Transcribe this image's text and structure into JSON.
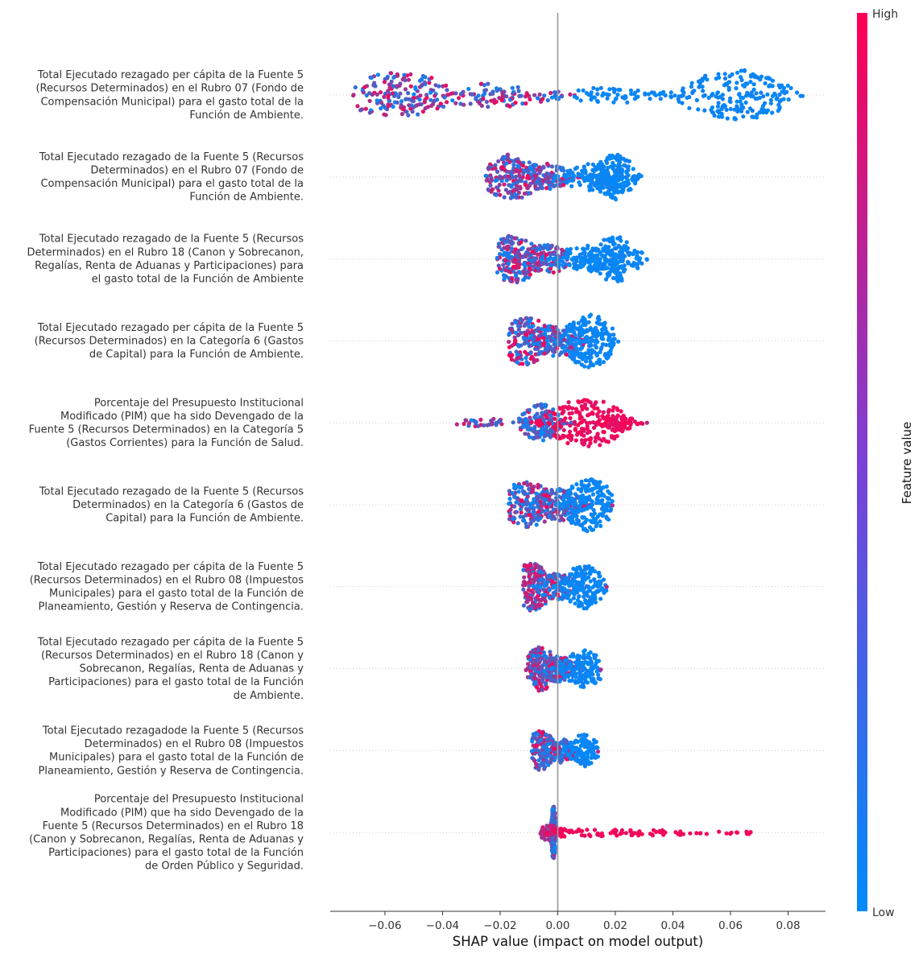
{
  "chart_data": {
    "type": "scatter",
    "subtype": "shap-beeswarm",
    "xlabel": "SHAP value (impact on model output)",
    "xlim": [
      -0.079,
      0.093
    ],
    "xticks": [
      -0.06,
      -0.04,
      -0.02,
      0.0,
      0.02,
      0.04,
      0.06,
      0.08
    ],
    "xtick_labels": [
      "−0.06",
      "−0.04",
      "−0.02",
      "0.00",
      "0.02",
      "0.04",
      "0.06",
      "0.08"
    ],
    "zero_line": true,
    "grid": false,
    "colorbar": {
      "title": "Feature value",
      "high_label": "High",
      "low_label": "Low",
      "low_color": "#008bfb",
      "high_color": "#ff0052"
    },
    "features": [
      {
        "lines": [
          "Total Ejecutado rezagado per cápita de la Fuente 5",
          "(Recursos Determinados) en el Rubro 07 (Fondo de",
          "Compensación Municipal) para el gasto total de la",
          "Función de Ambiente."
        ],
        "clusters": [
          {
            "center": -0.055,
            "spread": 0.011,
            "density": 0.85,
            "color_mix": 0.45
          },
          {
            "center": -0.022,
            "spread": 0.012,
            "density": 0.45,
            "color_mix": 0.4
          },
          {
            "center": 0.018,
            "spread": 0.012,
            "density": 0.3,
            "color_mix": 0.0
          },
          {
            "center": 0.062,
            "spread": 0.011,
            "density": 0.95,
            "color_mix": 0.0
          }
        ],
        "outliers": [
          -0.071,
          0.085
        ],
        "range": [
          -0.071,
          0.085
        ]
      },
      {
        "lines": [
          "Total Ejecutado rezagado de la Fuente 5 (Recursos",
          "Determinados) en el Rubro 07 (Fondo de",
          "Compensación Municipal) para el gasto total de la",
          "Función de Ambiente."
        ],
        "clusters": [
          {
            "center": -0.016,
            "spread": 0.006,
            "density": 0.85,
            "color_mix": 0.45
          },
          {
            "center": -0.004,
            "spread": 0.005,
            "density": 0.5,
            "color_mix": 0.3
          },
          {
            "center": 0.012,
            "spread": 0.006,
            "density": 0.5,
            "color_mix": 0.0
          },
          {
            "center": 0.02,
            "spread": 0.004,
            "density": 0.85,
            "color_mix": 0.0
          }
        ],
        "outliers": [
          -0.025,
          0.029
        ],
        "range": [
          -0.025,
          0.029
        ]
      },
      {
        "lines": [
          "Total Ejecutado rezagado de la Fuente 5 (Recursos",
          "Determinados) en el Rubro 18 (Canon y Sobrecanon,",
          "Regalías, Renta de Aduanas y Participaciones) para",
          "el gasto total de la Función de Ambiente"
        ],
        "clusters": [
          {
            "center": -0.015,
            "spread": 0.005,
            "density": 0.9,
            "color_mix": 0.45
          },
          {
            "center": -0.004,
            "spread": 0.005,
            "density": 0.55,
            "color_mix": 0.3
          },
          {
            "center": 0.01,
            "spread": 0.006,
            "density": 0.5,
            "color_mix": 0.0
          },
          {
            "center": 0.02,
            "spread": 0.005,
            "density": 0.85,
            "color_mix": 0.0
          }
        ],
        "outliers": [
          -0.021,
          0.031
        ],
        "range": [
          -0.021,
          0.031
        ]
      },
      {
        "lines": [
          "Total Ejecutado rezagado per cápita de la Fuente 5",
          "(Recursos Determinados) en la Categoría 6 (Gastos",
          "de Capital) para la Función de Ambiente."
        ],
        "clusters": [
          {
            "center": -0.011,
            "spread": 0.005,
            "density": 0.9,
            "color_mix": 0.4
          },
          {
            "center": 0.0,
            "spread": 0.005,
            "density": 0.6,
            "color_mix": 0.25
          },
          {
            "center": 0.011,
            "spread": 0.005,
            "density": 1.0,
            "color_mix": 0.0
          }
        ],
        "outliers": [
          -0.017,
          0.021
        ],
        "range": [
          -0.017,
          0.021
        ]
      },
      {
        "lines": [
          "Porcentaje del Presupuesto Institucional",
          "Modificado (PIM) que ha sido Devengado de la",
          "Fuente 5 (Recursos Determinados) en la Categoría 5",
          "(Gastos Corrientes) para la Función de Salud."
        ],
        "clusters": [
          {
            "center": -0.025,
            "spread": 0.008,
            "density": 0.15,
            "color_mix": 0.35
          },
          {
            "center": -0.006,
            "spread": 0.004,
            "density": 0.7,
            "color_mix": 0.1
          },
          {
            "center": 0.01,
            "spread": 0.008,
            "density": 0.9,
            "color_mix": 1.0
          },
          {
            "center": 0.02,
            "spread": 0.004,
            "density": 0.3,
            "color_mix": 1.0
          }
        ],
        "outliers": [
          -0.035,
          0.031
        ],
        "range": [
          -0.035,
          0.031
        ]
      },
      {
        "lines": [
          "Total Ejecutado rezagado de la Fuente 5 (Recursos",
          "Determinados) en la Categoría 6 (Gastos de",
          "Capital) para la Función de Ambiente."
        ],
        "clusters": [
          {
            "center": -0.011,
            "spread": 0.006,
            "density": 0.85,
            "color_mix": 0.4
          },
          {
            "center": 0.0,
            "spread": 0.005,
            "density": 0.6,
            "color_mix": 0.25
          },
          {
            "center": 0.011,
            "spread": 0.005,
            "density": 1.0,
            "color_mix": 0.0
          }
        ],
        "outliers": [
          -0.017,
          0.019
        ],
        "range": [
          -0.017,
          0.019
        ]
      },
      {
        "lines": [
          "Total Ejecutado rezagado per cápita de la Fuente 5",
          "(Recursos Determinados) en el Rubro 08 (Impuestos",
          "Municipales) para el gasto total de la Función de",
          "Planeamiento, Gestión y Reserva de Contingencia."
        ],
        "clusters": [
          {
            "center": -0.009,
            "spread": 0.004,
            "density": 0.9,
            "color_mix": 0.55
          },
          {
            "center": 0.0,
            "spread": 0.004,
            "density": 0.5,
            "color_mix": 0.2
          },
          {
            "center": 0.009,
            "spread": 0.004,
            "density": 0.85,
            "color_mix": 0.0
          }
        ],
        "outliers": [
          -0.012,
          0.017
        ],
        "range": [
          -0.012,
          0.017
        ]
      },
      {
        "lines": [
          "Total Ejecutado rezagado per cápita de la Fuente 5",
          "(Recursos Determinados) en el Rubro 18 (Canon y",
          "Sobrecanon, Regalías, Renta de Aduanas y",
          "Participaciones) para el gasto total de la Función",
          "de Ambiente."
        ],
        "clusters": [
          {
            "center": -0.006,
            "spread": 0.003,
            "density": 0.85,
            "color_mix": 0.35
          },
          {
            "center": 0.0,
            "spread": 0.003,
            "density": 0.5,
            "color_mix": 0.2
          },
          {
            "center": 0.009,
            "spread": 0.004,
            "density": 0.7,
            "color_mix": 0.0
          }
        ],
        "outliers": [
          -0.011,
          0.015
        ],
        "range": [
          -0.011,
          0.015
        ]
      },
      {
        "lines": [
          "Total Ejecutado rezagadode la Fuente 5 (Recursos",
          "Determinados) en el Rubro 08 (Impuestos",
          "Municipales) para el gasto total de la Función de",
          "Planeamiento, Gestión y Reserva de Contingencia."
        ],
        "clusters": [
          {
            "center": -0.006,
            "spread": 0.003,
            "density": 0.75,
            "color_mix": 0.35
          },
          {
            "center": 0.001,
            "spread": 0.003,
            "density": 0.45,
            "color_mix": 0.15
          },
          {
            "center": 0.009,
            "spread": 0.003,
            "density": 0.6,
            "color_mix": 0.0
          }
        ],
        "outliers": [
          -0.009,
          0.014
        ],
        "range": [
          -0.009,
          0.014
        ]
      },
      {
        "lines": [
          "Porcentaje del Presupuesto Institucional",
          "Modificado (PIM) que ha sido Devengado de la",
          "Fuente 5 (Recursos Determinados) en el Rubro 18",
          "(Canon y Sobrecanon, Regalías, Renta de Aduanas y",
          "Participaciones) para el gasto total de la Función",
          "de Orden Público y Seguridad."
        ],
        "clusters": [
          {
            "center": -0.0015,
            "spread": 0.0005,
            "density": 1.0,
            "color_mix": 0.05
          },
          {
            "center": -0.003,
            "spread": 0.002,
            "density": 0.3,
            "color_mix": 0.9
          }
        ],
        "tail": {
          "from": 0.0,
          "to": 0.067,
          "color_mix": 1.0
        },
        "outliers": [
          -0.006,
          0.067
        ],
        "range": [
          -0.006,
          0.067
        ]
      }
    ]
  }
}
